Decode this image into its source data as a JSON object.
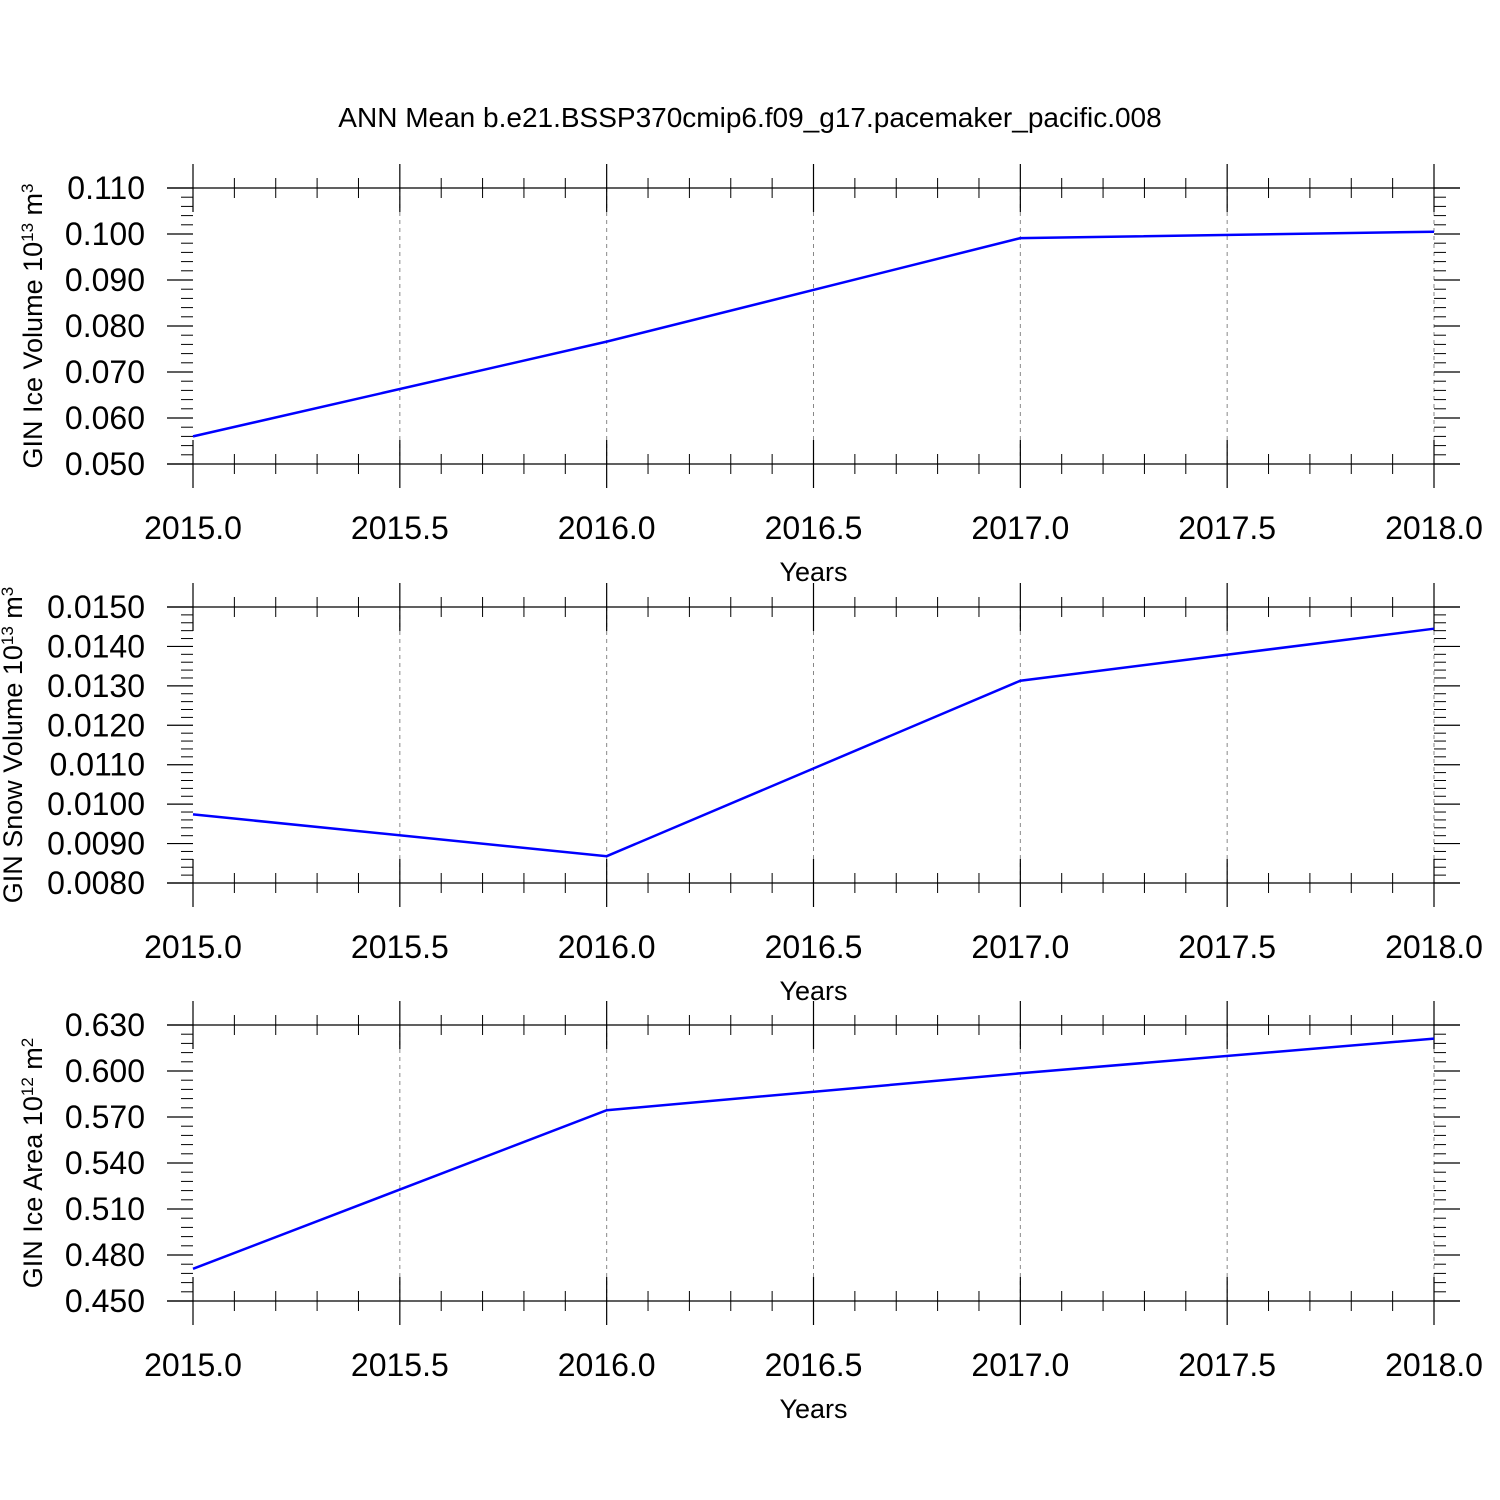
{
  "figure": {
    "title": "ANN Mean b.e21.BSSP370cmip6.f09_g17.pacemaker_pacific.008",
    "line_color": "#0000ff",
    "grid_color": "#888888"
  },
  "chart_data": [
    {
      "type": "line",
      "title": "",
      "xlabel": "Years",
      "ylabel": {
        "text": "GIN Ice Volume 10",
        "exponent": "13",
        "unit": " m",
        "unit_exponent": "3"
      },
      "x": [
        2015.0,
        2016.0,
        2017.0,
        2018.0
      ],
      "series": [
        {
          "values": [
            0.056,
            0.0766,
            0.0991,
            0.1005
          ]
        }
      ],
      "xlim": [
        2015.0,
        2018.0
      ],
      "ylim": [
        0.05,
        0.11
      ],
      "xticks": [
        2015.0,
        2015.5,
        2016.0,
        2016.5,
        2017.0,
        2017.5,
        2018.0
      ],
      "xtick_labels": [
        "2015.0",
        "2015.5",
        "2016.0",
        "2016.5",
        "2017.0",
        "2017.5",
        "2018.0"
      ],
      "yticks": [
        0.05,
        0.06,
        0.07,
        0.08,
        0.09,
        0.1,
        0.11
      ],
      "ytick_labels": [
        "0.050",
        "0.060",
        "0.070",
        "0.080",
        "0.090",
        "0.100",
        "0.110"
      ],
      "grid": "vertical dashed"
    },
    {
      "type": "line",
      "title": "",
      "xlabel": "Years",
      "ylabel": {
        "text": "GIN Snow Volume 10",
        "exponent": "13",
        "unit": " m",
        "unit_exponent": "3"
      },
      "x": [
        2015.0,
        2016.0,
        2017.0,
        2018.0
      ],
      "series": [
        {
          "values": [
            0.00974,
            0.00868,
            0.01313,
            0.01445
          ]
        }
      ],
      "xlim": [
        2015.0,
        2018.0
      ],
      "ylim": [
        0.008,
        0.015
      ],
      "xticks": [
        2015.0,
        2015.5,
        2016.0,
        2016.5,
        2017.0,
        2017.5,
        2018.0
      ],
      "xtick_labels": [
        "2015.0",
        "2015.5",
        "2016.0",
        "2016.5",
        "2017.0",
        "2017.5",
        "2018.0"
      ],
      "yticks": [
        0.008,
        0.009,
        0.01,
        0.011,
        0.012,
        0.013,
        0.014,
        0.015
      ],
      "ytick_labels": [
        "0.0080",
        "0.0090",
        "0.0100",
        "0.0110",
        "0.0120",
        "0.0130",
        "0.0140",
        "0.0150"
      ],
      "grid": "vertical dashed"
    },
    {
      "type": "line",
      "title": "",
      "xlabel": "Years",
      "ylabel": {
        "text": "GIN Ice Area 10",
        "exponent": "12",
        "unit": " m",
        "unit_exponent": "2"
      },
      "x": [
        2015.0,
        2016.0,
        2017.0,
        2018.0
      ],
      "series": [
        {
          "values": [
            0.471,
            0.5744,
            0.5985,
            0.6211
          ]
        }
      ],
      "xlim": [
        2015.0,
        2018.0
      ],
      "ylim": [
        0.45,
        0.63
      ],
      "xticks": [
        2015.0,
        2015.5,
        2016.0,
        2016.5,
        2017.0,
        2017.5,
        2018.0
      ],
      "xtick_labels": [
        "2015.0",
        "2015.5",
        "2016.0",
        "2016.5",
        "2017.0",
        "2017.5",
        "2018.0"
      ],
      "yticks": [
        0.45,
        0.48,
        0.51,
        0.54,
        0.57,
        0.6,
        0.63
      ],
      "ytick_labels": [
        "0.450",
        "0.480",
        "0.510",
        "0.540",
        "0.570",
        "0.600",
        "0.630"
      ],
      "grid": "vertical dashed"
    }
  ]
}
